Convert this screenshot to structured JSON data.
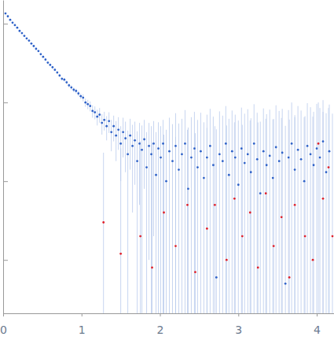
{
  "chart_data": {
    "type": "scatter",
    "log": "y",
    "tick_labels": "x",
    "xlim": [
      0,
      4.22
    ],
    "xticks": [
      0,
      1,
      2,
      3,
      4
    ],
    "ylim": [
      0.0021,
      20
    ],
    "yticks": [
      0.01,
      0.1,
      1,
      10
    ],
    "series": [
      {
        "color": "#2f62c8",
        "x": [
          0.03,
          0.06,
          0.09,
          0.12,
          0.15,
          0.18,
          0.21,
          0.24,
          0.27,
          0.3,
          0.33,
          0.36,
          0.39,
          0.42,
          0.45,
          0.48,
          0.51,
          0.54,
          0.57,
          0.6,
          0.63,
          0.66,
          0.69,
          0.72,
          0.75,
          0.78,
          0.81,
          0.84,
          0.87,
          0.9,
          0.93,
          0.96,
          0.99,
          1.02,
          1.05,
          1.08,
          1.11,
          1.14,
          1.17,
          1.2,
          1.23,
          1.26,
          1.29,
          1.32,
          1.35,
          1.38,
          1.41,
          1.44,
          1.47,
          1.5,
          1.53,
          1.56,
          1.59,
          1.62,
          1.65,
          1.68,
          1.71,
          1.74,
          1.77,
          1.8,
          1.83,
          1.86,
          1.89,
          1.92,
          1.95,
          1.98,
          2.01,
          2.04,
          2.08,
          2.12,
          2.16,
          2.2,
          2.24,
          2.28,
          2.32,
          2.36,
          2.4,
          2.44,
          2.48,
          2.52,
          2.56,
          2.6,
          2.64,
          2.68,
          2.72,
          2.76,
          2.8,
          2.84,
          2.88,
          2.92,
          2.96,
          3.0,
          3.04,
          3.08,
          3.12,
          3.16,
          3.2,
          3.24,
          3.28,
          3.32,
          3.36,
          3.4,
          3.44,
          3.48,
          3.52,
          3.56,
          3.6,
          3.64,
          3.68,
          3.72,
          3.76,
          3.8,
          3.84,
          3.88,
          3.92,
          3.96,
          4.0,
          4.04,
          4.08,
          4.12,
          4.16
        ],
        "values": [
          13.5,
          12.4,
          11.2,
          10.3,
          9.6,
          8.9,
          8.1,
          7.6,
          7.0,
          6.5,
          6.1,
          5.6,
          5.2,
          4.8,
          4.5,
          4.1,
          3.8,
          3.5,
          3.2,
          3.0,
          2.8,
          2.6,
          2.4,
          2.2,
          2.0,
          1.95,
          1.8,
          1.65,
          1.55,
          1.45,
          1.4,
          1.3,
          1.2,
          1.15,
          1.0,
          0.95,
          0.9,
          0.78,
          0.75,
          0.66,
          0.7,
          0.55,
          0.6,
          0.5,
          0.58,
          0.42,
          0.5,
          0.38,
          0.45,
          0.3,
          0.42,
          0.35,
          0.22,
          0.38,
          0.28,
          0.33,
          0.18,
          0.3,
          0.25,
          0.34,
          0.15,
          0.28,
          0.22,
          0.3,
          0.12,
          0.26,
          0.2,
          0.3,
          0.1,
          0.24,
          0.18,
          0.28,
          0.14,
          0.22,
          0.3,
          0.08,
          0.2,
          0.26,
          0.15,
          0.24,
          0.11,
          0.2,
          0.28,
          0.16,
          0.006,
          0.22,
          0.18,
          0.3,
          0.12,
          0.24,
          0.2,
          0.09,
          0.26,
          0.17,
          0.22,
          0.13,
          0.3,
          0.19,
          0.07,
          0.24,
          0.16,
          0.21,
          0.11,
          0.27,
          0.18,
          0.23,
          0.005,
          0.2,
          0.3,
          0.14,
          0.25,
          0.19,
          0.1,
          0.28,
          0.22,
          0.16,
          0.26,
          0.2,
          0.32,
          0.13,
          0.24
        ],
        "errors": [
          0.3,
          0.3,
          0.25,
          0.25,
          0.22,
          0.2,
          0.2,
          0.18,
          0.17,
          0.16,
          0.15,
          0.15,
          0.14,
          0.14,
          0.13,
          0.13,
          0.12,
          0.12,
          0.12,
          0.11,
          0.11,
          0.11,
          0.1,
          0.1,
          0.1,
          0.1,
          0.1,
          0.1,
          0.1,
          0.1,
          0.1,
          0.1,
          0.1,
          0.12,
          0.12,
          0.13,
          0.13,
          0.14,
          0.14,
          0.15,
          0.15,
          0.16,
          0.16,
          0.17,
          0.17,
          0.18,
          0.18,
          0.2,
          0.2,
          0.2,
          0.22,
          0.22,
          0.22,
          0.24,
          0.24,
          0.24,
          0.25,
          0.25,
          0.26,
          0.26,
          0.27,
          0.27,
          0.28,
          0.28,
          0.3,
          0.3,
          0.3,
          0.3,
          0.35,
          0.4,
          0.35,
          0.45,
          0.4,
          0.4,
          0.5,
          0.4,
          0.45,
          0.5,
          0.45,
          0.5,
          0.45,
          0.5,
          0.55,
          0.5,
          0.45,
          0.55,
          0.5,
          0.6,
          0.5,
          0.55,
          0.5,
          0.5,
          0.6,
          0.55,
          0.6,
          0.5,
          0.65,
          0.55,
          0.5,
          0.6,
          0.55,
          0.6,
          0.5,
          0.65,
          0.6,
          0.6,
          0.5,
          0.6,
          0.7,
          0.55,
          0.65,
          0.6,
          0.55,
          0.7,
          0.65,
          0.6,
          0.7,
          0.65,
          0.75,
          0.6,
          0.7
        ]
      },
      {
        "color": "#e0202a",
        "x": [
          1.28,
          1.5,
          1.75,
          1.9,
          2.05,
          2.2,
          2.35,
          2.45,
          2.6,
          2.7,
          2.85,
          2.95,
          3.05,
          3.15,
          3.25,
          3.35,
          3.45,
          3.55,
          3.65,
          3.72,
          3.85,
          3.95,
          4.02,
          4.08,
          4.15,
          4.2
        ],
        "values": [
          0.03,
          0.012,
          0.02,
          0.008,
          0.04,
          0.015,
          0.05,
          0.007,
          0.025,
          0.05,
          0.01,
          0.06,
          0.02,
          0.04,
          0.008,
          0.07,
          0.015,
          0.035,
          0.006,
          0.05,
          0.02,
          0.01,
          0.3,
          0.06,
          0.15,
          0.02
        ],
        "errors": [
          0.2,
          0.25,
          0.3,
          0.3,
          0.35,
          0.35,
          0.4,
          0.4,
          0.45,
          0.45,
          0.5,
          0.5,
          0.5,
          0.55,
          0.55,
          0.55,
          0.6,
          0.6,
          0.6,
          0.6,
          0.65,
          0.65,
          0.7,
          0.7,
          0.7,
          0.7
        ]
      }
    ]
  }
}
